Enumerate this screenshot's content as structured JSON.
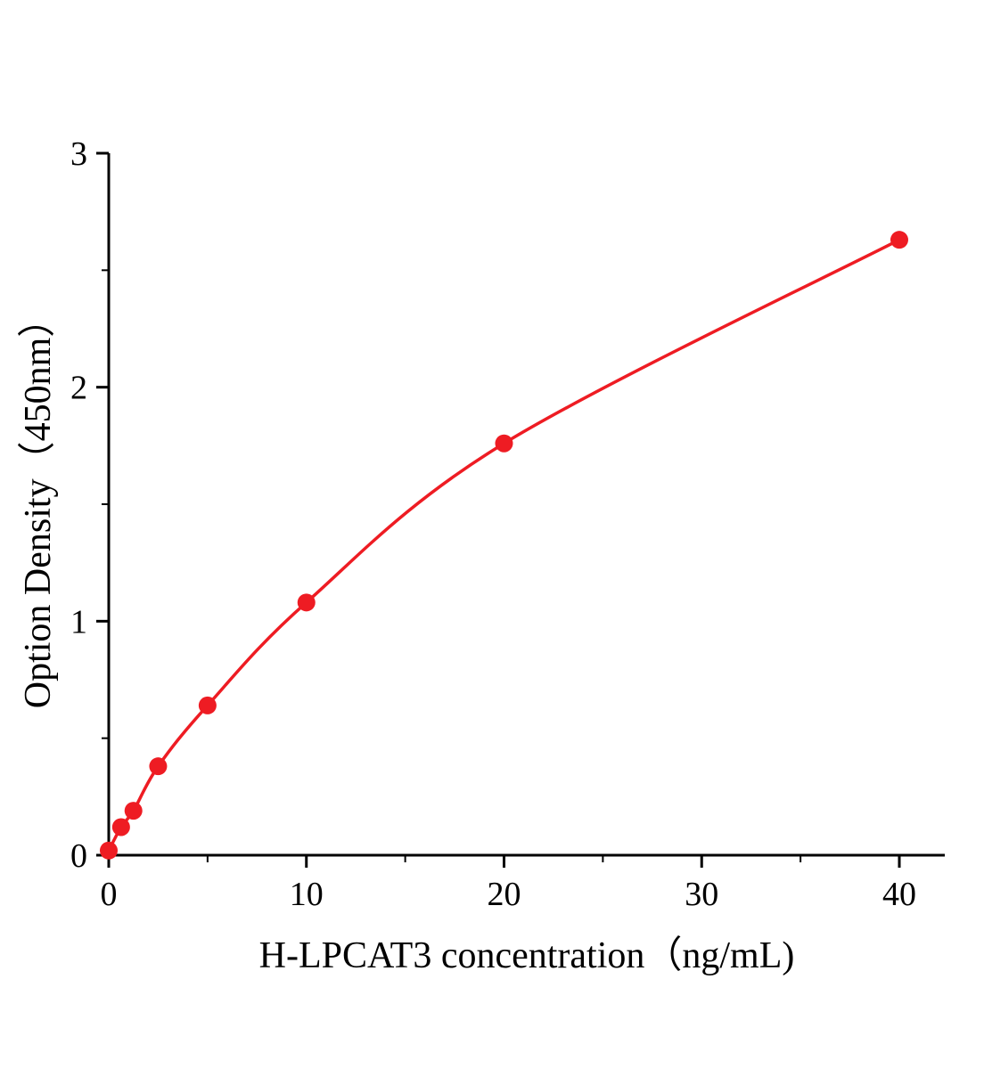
{
  "figure": {
    "background": "#ffffff"
  },
  "chart_data": {
    "type": "scatter",
    "title": "",
    "xlabel": "H-LPCAT3 concentration（ng/mL)",
    "ylabel": "Option Density（450nm）",
    "x": [
      0,
      0.625,
      1.25,
      2.5,
      5,
      10,
      20,
      40
    ],
    "y": [
      0.02,
      0.12,
      0.19,
      0.38,
      0.64,
      1.08,
      1.76,
      2.63
    ],
    "xlim": [
      0,
      42.3
    ],
    "ylim": [
      0,
      3
    ],
    "x_major_ticks": [
      0,
      10,
      20,
      30,
      40
    ],
    "x_tick_labels": [
      "0",
      "10",
      "20",
      "30",
      "40"
    ],
    "x_minor_ticks": [
      5,
      15,
      25,
      35
    ],
    "y_major_ticks": [
      0,
      1,
      2,
      3
    ],
    "y_tick_labels": [
      "0",
      "1",
      "2",
      "3"
    ],
    "y_minor_ticks": [
      0.5,
      1.5,
      2.5
    ],
    "line_color": "#ee1c23",
    "marker_color": "#ee1c23",
    "marker_radius": 10,
    "axis_color": "#000000",
    "grid": false,
    "legend": null
  }
}
